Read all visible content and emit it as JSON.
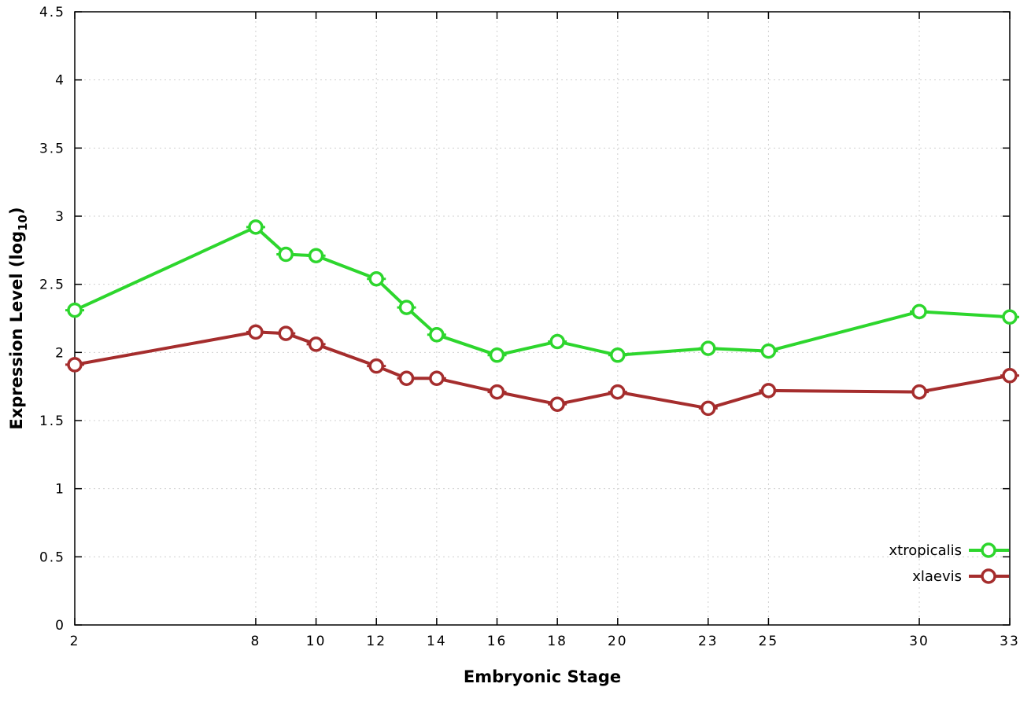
{
  "chart_data": {
    "type": "line",
    "title": "",
    "xlabel": "Embryonic Stage",
    "ylabel": "Expression Level (log10)",
    "ylabel_parts": [
      {
        "t": "Expression Level (log"
      },
      {
        "t": "10",
        "sub": true
      },
      {
        "t": ")"
      }
    ],
    "xlim": [
      2,
      33
    ],
    "ylim": [
      0,
      4.5
    ],
    "grid": true,
    "grid_style": "dotted",
    "legend_position": "inside-bottom-right",
    "background_color": "#ffffff",
    "border_color": "#000000",
    "grid_color": "#d0d0d0",
    "x": [
      2,
      8,
      9,
      10,
      12,
      13,
      14,
      16,
      18,
      20,
      23,
      25,
      30,
      33
    ],
    "xticks": [
      {
        "v": 2,
        "label": "2"
      },
      {
        "v": 8,
        "label": "8"
      },
      {
        "v": 10,
        "label": "10"
      },
      {
        "v": 12,
        "label": "12"
      },
      {
        "v": 14,
        "label": "14"
      },
      {
        "v": 16,
        "label": "16"
      },
      {
        "v": 18,
        "label": "18"
      },
      {
        "v": 20,
        "label": "20"
      },
      {
        "v": 23,
        "label": "23"
      },
      {
        "v": 25,
        "label": "25"
      },
      {
        "v": 30,
        "label": "30"
      },
      {
        "v": 33,
        "label": "33"
      }
    ],
    "yticks": [
      {
        "v": 0,
        "label": "0"
      },
      {
        "v": 0.5,
        "label": "0.5"
      },
      {
        "v": 1,
        "label": "1"
      },
      {
        "v": 1.5,
        "label": "1.5"
      },
      {
        "v": 2,
        "label": "2"
      },
      {
        "v": 2.5,
        "label": "2.5"
      },
      {
        "v": 3,
        "label": "3"
      },
      {
        "v": 3.5,
        "label": "3.5"
      },
      {
        "v": 4,
        "label": "4"
      },
      {
        "v": 4.5,
        "label": "4.5"
      }
    ],
    "series": [
      {
        "name": "xtropicalis",
        "color": "#2dd62d",
        "marker": "open-circle",
        "values": [
          2.31,
          2.92,
          2.72,
          2.71,
          2.54,
          2.33,
          2.13,
          1.98,
          2.08,
          1.98,
          2.03,
          2.01,
          2.3,
          2.26
        ]
      },
      {
        "name": "xlaevis",
        "color": "#a52d2d",
        "marker": "open-circle",
        "values": [
          1.91,
          2.15,
          2.14,
          2.06,
          1.9,
          1.81,
          1.81,
          1.71,
          1.62,
          1.71,
          1.59,
          1.72,
          1.71,
          1.83
        ]
      }
    ]
  }
}
